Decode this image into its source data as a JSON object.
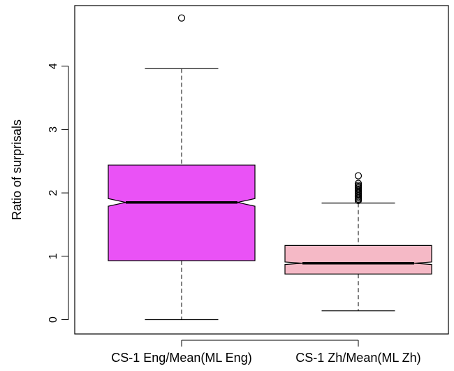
{
  "chart_data": {
    "type": "boxplot",
    "notched": true,
    "title": "",
    "xlabel": "",
    "ylabel": "Ratio of surprisals",
    "ylim": [
      0,
      5
    ],
    "yticks": [
      "0",
      "1",
      "2",
      "3",
      "4"
    ],
    "grid": false,
    "legend": "none",
    "categories": [
      "CS-1 Eng/Mean(ML Eng)",
      "CS-1 Zh/Mean(ML Zh)"
    ],
    "boxes": [
      {
        "category": "CS-1 Eng/Mean(ML Eng)",
        "color": "#ea52f6",
        "whisker_low": 0.0,
        "q1": 0.93,
        "median": 1.85,
        "q3": 2.44,
        "whisker_high": 3.96,
        "notch_low": 1.79,
        "notch_high": 1.91,
        "outliers": [
          4.76
        ]
      },
      {
        "category": "CS-1 Zh/Mean(ML Zh)",
        "color": "#f5b9c6",
        "whisker_low": 0.14,
        "q1": 0.72,
        "median": 0.89,
        "q3": 1.17,
        "whisker_high": 1.84,
        "notch_low": 0.87,
        "notch_high": 0.91,
        "outliers": [
          1.88,
          1.9,
          1.92,
          1.94,
          1.96,
          1.98,
          2.0,
          2.02,
          2.04,
          2.06,
          2.08,
          2.1,
          2.12,
          2.15,
          2.27
        ]
      }
    ]
  }
}
